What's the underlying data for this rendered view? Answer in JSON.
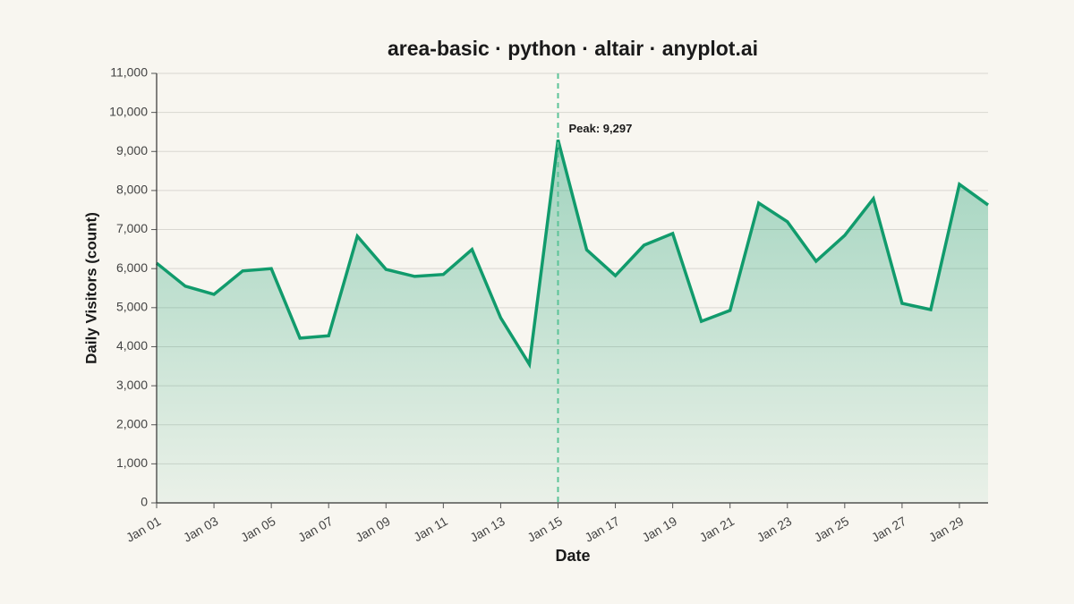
{
  "chart_data": {
    "type": "area",
    "title": "area-basic · python · altair · anyplot.ai",
    "x_label": "Date",
    "y_label": "Daily Visitors (count)",
    "categories": [
      "Jan 01",
      null,
      "Jan 03",
      null,
      "Jan 05",
      null,
      "Jan 07",
      null,
      "Jan 09",
      null,
      "Jan 11",
      null,
      "Jan 13",
      null,
      "Jan 15",
      null,
      "Jan 17",
      null,
      "Jan 19",
      null,
      "Jan 21",
      null,
      "Jan 23",
      null,
      "Jan 25",
      null,
      "Jan 27",
      null,
      "Jan 29",
      null
    ],
    "values": [
      6140,
      5550,
      5340,
      5940,
      6000,
      4220,
      4280,
      6830,
      5980,
      5800,
      5850,
      6490,
      4740,
      3550,
      9297,
      6480,
      5820,
      6600,
      6900,
      4650,
      4930,
      7680,
      7200,
      6190,
      6850,
      7790,
      5110,
      4950,
      8160,
      7630
    ],
    "color": "#119b6c",
    "ylim": [
      0,
      11000
    ],
    "yticks": [
      0,
      {
        "value": 1000,
        "label": "1,000"
      },
      {
        "value": 2000,
        "label": "2,000"
      },
      {
        "value": 3000,
        "label": "3,000"
      },
      {
        "value": 4000,
        "label": "4,000"
      },
      {
        "value": 5000,
        "label": "5,000"
      },
      {
        "value": 6000,
        "label": "6,000"
      },
      {
        "value": 7000,
        "label": "7,000"
      },
      {
        "value": 8000,
        "label": "8,000"
      },
      {
        "value": 9000,
        "label": "9,000"
      },
      {
        "value": 10000,
        "label": "10,000"
      },
      {
        "value": 11000,
        "label": "11,000"
      }
    ],
    "grid": true,
    "annotation": {
      "label": "Peak: 9,297",
      "value": 9297
    }
  }
}
